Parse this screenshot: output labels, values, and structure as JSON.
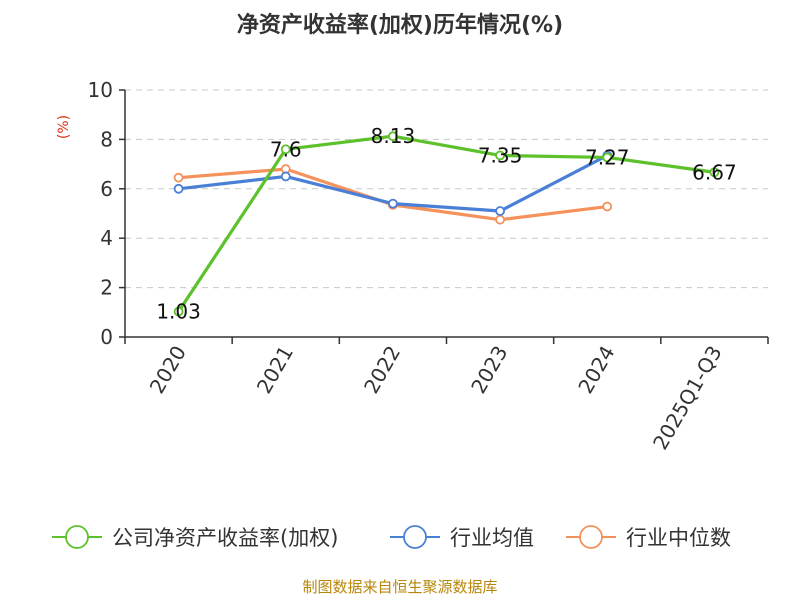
{
  "chart_data": {
    "type": "line",
    "title": "净资产收益率(加权)历年情况(%)",
    "ylabel": "(%)",
    "xlabel": "",
    "categories": [
      "2020",
      "2021",
      "2022",
      "2023",
      "2024",
      "2025Q1-Q3"
    ],
    "ylim": [
      0,
      10
    ],
    "yticks": [
      0,
      2,
      4,
      6,
      8,
      10
    ],
    "grid": true,
    "legend_position": "bottom",
    "series": [
      {
        "name": "公司净资产收益率(加权)",
        "color": "#5cc12a",
        "values": [
          1.03,
          7.6,
          8.13,
          7.35,
          7.27,
          6.67
        ],
        "data_labels": [
          "1.03",
          "7.6",
          "8.13",
          "7.35",
          "7.27",
          "6.67"
        ]
      },
      {
        "name": "行业均值",
        "color": "#4a7fd6",
        "values": [
          6.0,
          6.5,
          5.4,
          5.1,
          7.35,
          null
        ]
      },
      {
        "name": "行业中位数",
        "color": "#f5915a",
        "values": [
          6.45,
          6.8,
          5.35,
          4.75,
          5.28,
          null
        ]
      }
    ]
  },
  "footer": {
    "source": "制图数据来自恒生聚源数据库"
  }
}
